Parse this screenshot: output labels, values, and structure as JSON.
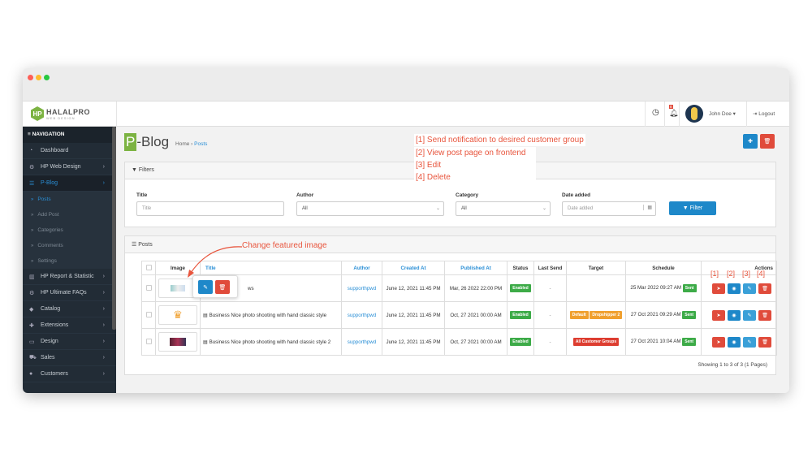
{
  "header": {
    "brand": "HALALPRO",
    "brand_sub": "WEB DESIGN",
    "logo_letters": "HP",
    "notification_count": "8",
    "user": "John Doe",
    "logout": "Logout"
  },
  "sidebar": {
    "heading": "NAVIGATION",
    "items": [
      {
        "label": "Dashboard",
        "icon": "dashboard-icon",
        "glyph": "◔"
      },
      {
        "label": "HP Web Design",
        "icon": "gears-icon",
        "glyph": "⚙"
      },
      {
        "label": "P-Blog",
        "icon": "blog-icon",
        "glyph": "☰"
      },
      {
        "label": "HP Report & Statistic",
        "icon": "bar-chart-icon",
        "glyph": "▥"
      },
      {
        "label": "HP Ultimate FAQs",
        "icon": "gears-icon",
        "glyph": "⚙"
      },
      {
        "label": "Catalog",
        "icon": "tags-icon",
        "glyph": "◆"
      },
      {
        "label": "Extensions",
        "icon": "puzzle-icon",
        "glyph": "✚"
      },
      {
        "label": "Design",
        "icon": "monitor-icon",
        "glyph": "▭"
      },
      {
        "label": "Sales",
        "icon": "cart-icon",
        "glyph": "⛟"
      },
      {
        "label": "Customers",
        "icon": "user-icon",
        "glyph": "●"
      }
    ],
    "subitems": [
      "Posts",
      "Add Post",
      "Categories",
      "Comments",
      "Settings"
    ]
  },
  "page": {
    "title_letter": "P",
    "title_rest": "-Blog",
    "breadcrumb": [
      "Home",
      "Posts"
    ]
  },
  "annotations": {
    "lines": [
      "[1] Send notification to desired customer group",
      "[2] View post page on frontend",
      "[3] Edit",
      "[4] Delete"
    ],
    "featured": "Change featured image",
    "action_labels": [
      "[1]",
      "[2]",
      "[3]",
      "[4]"
    ]
  },
  "filters": {
    "heading": "Filters",
    "title_label": "Title",
    "title_placeholder": "Title",
    "author_label": "Author",
    "author_value": "All",
    "category_label": "Category",
    "category_value": "All",
    "date_label": "Date added",
    "date_placeholder": "Date added",
    "filter_button": "Filter"
  },
  "posts": {
    "heading": "Posts",
    "columns": [
      "Image",
      "Title",
      "Author",
      "Created At",
      "Published At",
      "Status",
      "Last Send",
      "Target",
      "Schedule",
      "Actions"
    ],
    "rows": [
      {
        "title": "ws",
        "author": "supporthpwd",
        "created": "June 12, 2021 11:45 PM",
        "published": "Mar, 26 2022 22:00 PM",
        "status": "Enabled",
        "last_send": "-",
        "targets": [],
        "schedule": "25 Mar 2022 09:27 AM",
        "sent": "Sent"
      },
      {
        "title": "Business Nice photo shooting with hand classic style",
        "author": "supporthpwd",
        "created": "June 12, 2021 11:45 PM",
        "published": "Oct, 27 2021 00:00 AM",
        "status": "Enabled",
        "last_send": "-",
        "targets": [
          "Default",
          "Dropshipper 2"
        ],
        "schedule": "27 Oct 2021 09:29 AM",
        "sent": "Sent"
      },
      {
        "title": "Business Nice photo shooting with hand classic style 2",
        "author": "supporthpwd",
        "created": "June 12, 2021 11:45 PM",
        "published": "Oct, 27 2021 00:00 AM",
        "status": "Enabled",
        "last_send": "-",
        "targets": [
          "All Customer Groups"
        ],
        "schedule": "27 Oct 2021 10:04 AM",
        "sent": "Sent"
      }
    ],
    "pagination": "Showing 1 to 3 of 3 (1 Pages)"
  }
}
